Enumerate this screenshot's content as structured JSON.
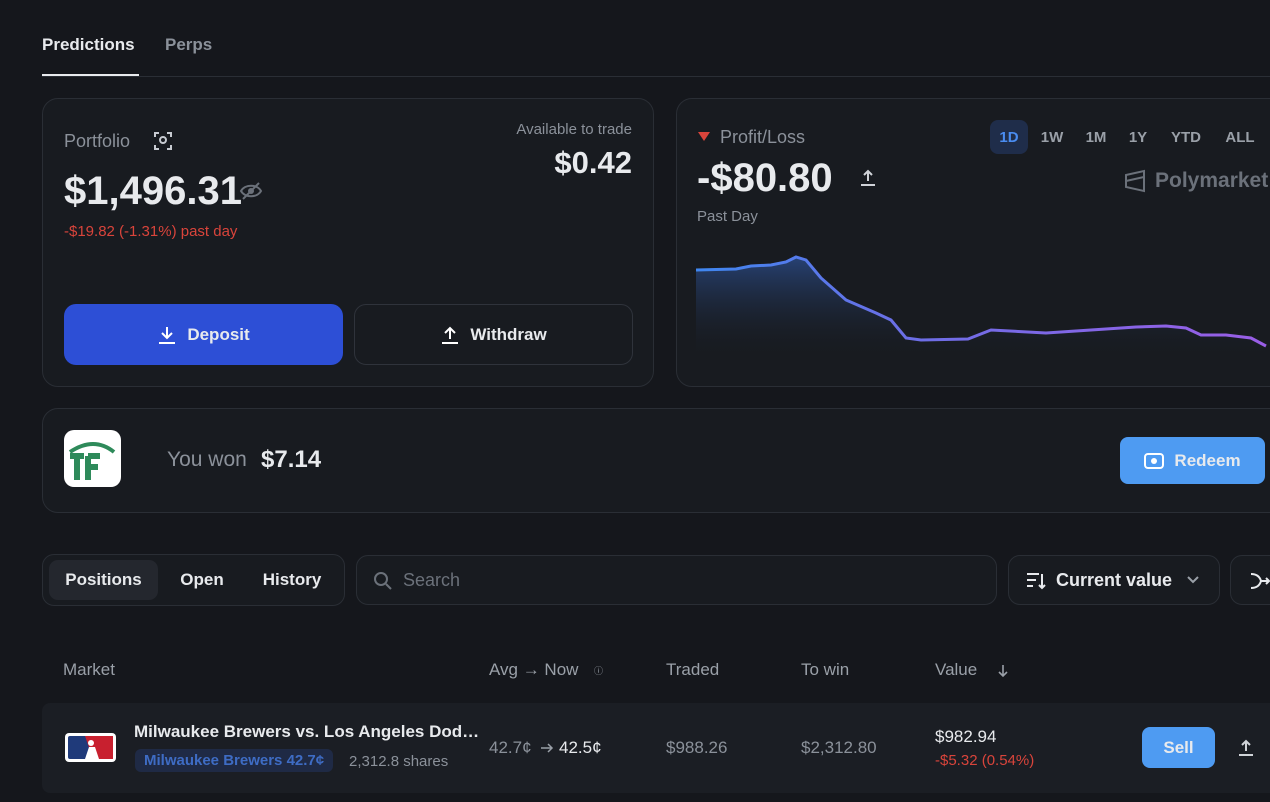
{
  "tabs": [
    "Predictions",
    "Perps"
  ],
  "portfolio": {
    "label": "Portfolio",
    "value": "$1,496.31",
    "change": "-$19.82 (-1.31%) past day",
    "available_label": "Available to trade",
    "available": "$0.42",
    "deposit": "Deposit",
    "withdraw": "Withdraw"
  },
  "pnl": {
    "label": "Profit/Loss",
    "value": "-$80.80",
    "period": "Past Day",
    "ranges": [
      "1D",
      "1W",
      "1M",
      "1Y",
      "YTD",
      "ALL"
    ],
    "brand": "Polymarket"
  },
  "banner": {
    "text": "You won",
    "amount": "$7.14",
    "button": "Redeem"
  },
  "filters": {
    "tabs": [
      "Positions",
      "Open",
      "History"
    ],
    "search": "Search",
    "sort": "Current value"
  },
  "table": {
    "headers": [
      "Market",
      "Avg → Now",
      "Traded",
      "To win",
      "Value"
    ],
    "rows": [
      {
        "title": "Milwaukee Brewers vs. Los Angeles Dod…",
        "outcome": "Milwaukee Brewers 42.7¢",
        "shares": "2,312.8 shares",
        "avg": "42.7¢",
        "now": "42.5¢",
        "traded": "$988.26",
        "to_win": "$2,312.80",
        "value": "$982.94",
        "change": "-$5.32 (0.54%)",
        "action": "Sell"
      }
    ]
  }
}
